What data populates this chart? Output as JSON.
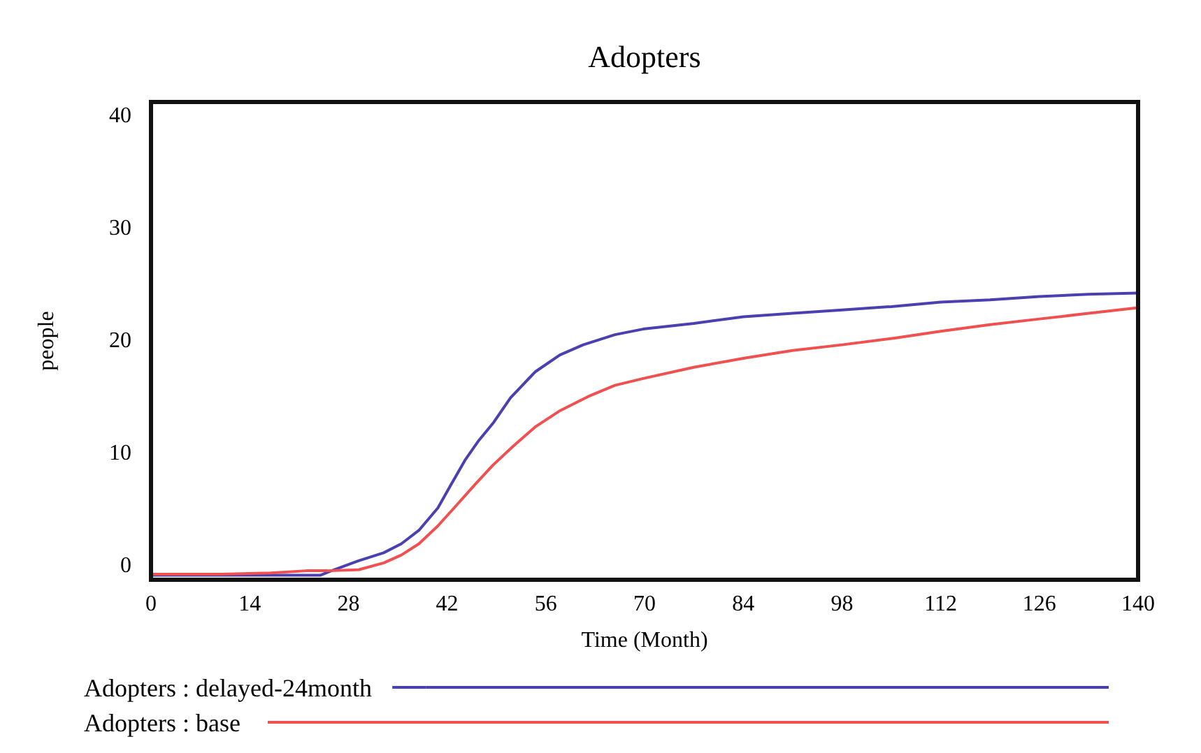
{
  "chart_data": {
    "type": "line",
    "title": "Adopters",
    "xlabel": "Time (Month)",
    "ylabel": "people",
    "xlim": [
      0,
      140
    ],
    "xticks": [
      0,
      14,
      28,
      42,
      56,
      70,
      84,
      98,
      112,
      126,
      140
    ],
    "ylim": [
      -1.4,
      41.1
    ],
    "yticks": [
      0,
      10,
      20,
      30,
      40
    ],
    "legend": "bottom",
    "grid": false,
    "marker": "none",
    "line_style": "solid",
    "series": [
      {
        "name": "Adopters : delayed-24month",
        "color": "#4a40b0",
        "x": [
          0,
          10,
          20,
          24,
          26,
          29.5,
          33,
          35.5,
          38,
          40.7,
          42.5,
          44.6,
          46.5,
          48.6,
          51,
          54.5,
          58,
          61.3,
          65.8,
          69.8,
          77,
          84,
          91,
          98,
          105,
          112,
          119,
          126,
          133,
          140
        ],
        "values": [
          -1,
          -1,
          -1,
          -1,
          -0.5,
          0.3,
          1,
          1.8,
          3,
          5,
          7,
          9.3,
          11,
          12.6,
          14.8,
          17.1,
          18.6,
          19.5,
          20.4,
          20.9,
          21.4,
          22,
          22.3,
          22.6,
          22.9,
          23.3,
          23.5,
          23.8,
          24,
          24.1
        ]
      },
      {
        "name": "Adopters : base",
        "color": "#f05050",
        "x": [
          0,
          10,
          17,
          22,
          25,
          29.5,
          33,
          35.5,
          38,
          40.7,
          43,
          46,
          48.5,
          51.4,
          54.5,
          57.9,
          62,
          65.8,
          69.8,
          77,
          84,
          91,
          98,
          105.5,
          112,
          119,
          126,
          133,
          140
        ],
        "values": [
          -0.9,
          -0.9,
          -0.8,
          -0.6,
          -0.6,
          -0.5,
          0.1,
          0.8,
          1.8,
          3.4,
          5,
          7.1,
          8.8,
          10.5,
          12.2,
          13.6,
          14.9,
          15.9,
          16.5,
          17.5,
          18.3,
          19,
          19.5,
          20.1,
          20.7,
          21.3,
          21.8,
          22.3,
          22.8
        ]
      }
    ]
  }
}
